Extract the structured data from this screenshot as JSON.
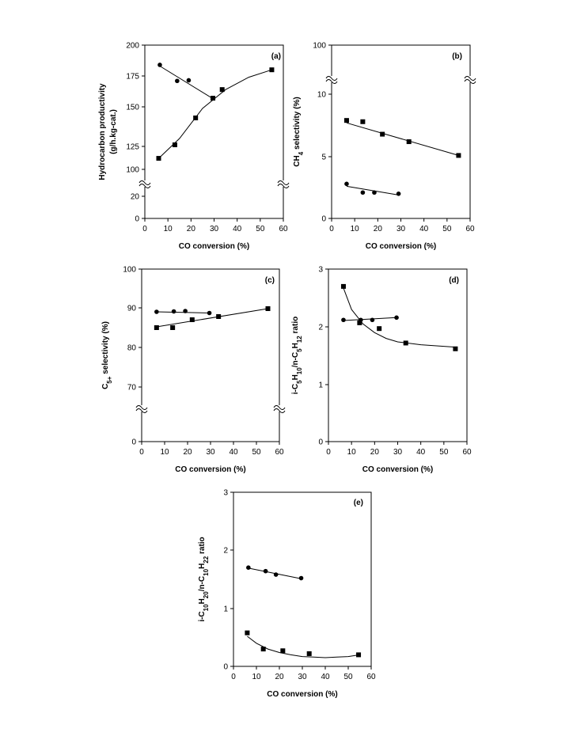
{
  "chart_data": [
    {
      "id": "a",
      "type": "scatter",
      "panel_label": "(a)",
      "xlabel": "CO conversion (%)",
      "ylabel_lines": [
        "Hydrocarbon productivity",
        "(g/h.kg-cat.)"
      ],
      "xlim": [
        0,
        60
      ],
      "x_ticks": [
        0,
        10,
        20,
        30,
        40,
        50,
        60
      ],
      "y_ticks": [
        0,
        20,
        100,
        125,
        150,
        175,
        200
      ],
      "axis_break": true,
      "series": [
        {
          "marker": "circle",
          "points": [
            [
              6.5,
              184
            ],
            [
              14,
              171
            ],
            [
              19,
              171.5
            ],
            [
              29.5,
              157
            ]
          ],
          "fit": [
            [
              6.5,
              183
            ],
            [
              30,
              156
            ]
          ]
        },
        {
          "marker": "square",
          "points": [
            [
              6,
              112
            ],
            [
              13,
              126
            ],
            [
              22,
              143
            ],
            [
              29.5,
              157
            ],
            [
              33.5,
              164
            ],
            [
              55,
              180
            ]
          ],
          "fit": [
            [
              6,
              112
            ],
            [
              15,
              130
            ],
            [
              25,
              149
            ],
            [
              35,
              164
            ],
            [
              45,
              174
            ],
            [
              55,
              180
            ]
          ]
        }
      ]
    },
    {
      "id": "b",
      "type": "scatter",
      "panel_label": "(b)",
      "xlabel": "CO conversion (%)",
      "ylabel_parts": [
        {
          "t": "CH"
        },
        {
          "t": "4",
          "sub": true
        },
        {
          "t": " selectivity (%)"
        }
      ],
      "xlim": [
        0,
        60
      ],
      "x_ticks": [
        0,
        10,
        20,
        30,
        40,
        50,
        60
      ],
      "y_ticks": [
        0,
        5,
        10,
        100
      ],
      "axis_break": true,
      "series": [
        {
          "marker": "square",
          "points": [
            [
              6.5,
              7.9
            ],
            [
              13.5,
              7.8
            ],
            [
              22,
              6.8
            ],
            [
              33.5,
              6.2
            ],
            [
              55,
              5.1
            ]
          ],
          "fit": [
            [
              6.5,
              7.7
            ],
            [
              55,
              5.1
            ]
          ]
        },
        {
          "marker": "circle",
          "points": [
            [
              6.5,
              2.8
            ],
            [
              13.5,
              2.1
            ],
            [
              18.5,
              2.1
            ],
            [
              29,
              2.0
            ]
          ],
          "fit": [
            [
              6.5,
              2.6
            ],
            [
              29,
              1.9
            ]
          ]
        }
      ]
    },
    {
      "id": "c",
      "type": "scatter",
      "panel_label": "(c)",
      "xlabel": "CO conversion (%)",
      "ylabel_parts": [
        {
          "t": "C"
        },
        {
          "t": "5+",
          "sub": true
        },
        {
          "t": " selectivity (%)"
        }
      ],
      "xlim": [
        0,
        60
      ],
      "x_ticks": [
        0,
        10,
        20,
        30,
        40,
        50,
        60
      ],
      "y_ticks": [
        0,
        70,
        80,
        90,
        100
      ],
      "axis_break": true,
      "series": [
        {
          "marker": "circle",
          "points": [
            [
              6.5,
              89
            ],
            [
              14,
              89.1
            ],
            [
              19,
              89.2
            ],
            [
              29.5,
              88.7
            ]
          ],
          "fit": [
            [
              6.5,
              89.0
            ],
            [
              29.5,
              88.7
            ]
          ]
        },
        {
          "marker": "square",
          "points": [
            [
              6.5,
              85
            ],
            [
              13.5,
              85
            ],
            [
              22,
              87
            ],
            [
              33.5,
              87.8
            ],
            [
              55,
              89.8
            ]
          ],
          "fit": [
            [
              6.5,
              85.2
            ],
            [
              55,
              89.8
            ]
          ]
        }
      ]
    },
    {
      "id": "d",
      "type": "scatter",
      "panel_label": "(d)",
      "xlabel": "CO conversion (%)",
      "ylabel_parts": [
        {
          "t": "i-C"
        },
        {
          "t": "5",
          "sub": true
        },
        {
          "t": "H"
        },
        {
          "t": "10",
          "sub": true
        },
        {
          "t": "/n-C"
        },
        {
          "t": "5",
          "sub": true
        },
        {
          "t": "H"
        },
        {
          "t": "12",
          "sub": true
        },
        {
          "t": " ratio"
        }
      ],
      "xlim": [
        0,
        60
      ],
      "x_ticks": [
        0,
        10,
        20,
        30,
        40,
        50,
        60
      ],
      "y_ticks": [
        0,
        1,
        2,
        3
      ],
      "axis_break": false,
      "series": [
        {
          "marker": "square",
          "points": [
            [
              6.5,
              2.7
            ],
            [
              13.5,
              2.07
            ],
            [
              22,
              1.97
            ],
            [
              33.5,
              1.72
            ],
            [
              55,
              1.62
            ]
          ],
          "fit": [
            [
              6.5,
              2.67
            ],
            [
              10,
              2.3
            ],
            [
              15,
              2.05
            ],
            [
              20,
              1.9
            ],
            [
              25,
              1.8
            ],
            [
              30,
              1.74
            ],
            [
              40,
              1.69
            ],
            [
              55,
              1.65
            ]
          ]
        },
        {
          "marker": "circle",
          "points": [
            [
              6.5,
              2.12
            ],
            [
              14,
              2.12
            ],
            [
              19,
              2.12
            ],
            [
              29.5,
              2.16
            ]
          ],
          "fit": [
            [
              6.5,
              2.11
            ],
            [
              29.5,
              2.16
            ]
          ]
        }
      ]
    },
    {
      "id": "e",
      "type": "scatter",
      "panel_label": "(e)",
      "xlabel": "CO conversion (%)",
      "ylabel_parts": [
        {
          "t": "i-C"
        },
        {
          "t": "10",
          "sub": true
        },
        {
          "t": "H"
        },
        {
          "t": "20",
          "sub": true
        },
        {
          "t": "/n-C"
        },
        {
          "t": "10",
          "sub": true
        },
        {
          "t": "H"
        },
        {
          "t": "22",
          "sub": true
        },
        {
          "t": " ratio"
        }
      ],
      "xlim": [
        0,
        60
      ],
      "x_ticks": [
        0,
        10,
        20,
        30,
        40,
        50,
        60
      ],
      "y_ticks": [
        0,
        1,
        2,
        3
      ],
      "axis_break": false,
      "series": [
        {
          "marker": "circle",
          "points": [
            [
              6.5,
              1.7
            ],
            [
              14,
              1.64
            ],
            [
              18.5,
              1.58
            ],
            [
              29.5,
              1.52
            ]
          ],
          "fit": [
            [
              6.5,
              1.69
            ],
            [
              29.5,
              1.51
            ]
          ]
        },
        {
          "marker": "square",
          "points": [
            [
              6,
              0.58
            ],
            [
              13,
              0.3
            ],
            [
              21.5,
              0.27
            ],
            [
              33,
              0.22
            ],
            [
              54.5,
              0.2
            ]
          ],
          "fit": [
            [
              6,
              0.52
            ],
            [
              10,
              0.4
            ],
            [
              15,
              0.3
            ],
            [
              20,
              0.24
            ],
            [
              25,
              0.2
            ],
            [
              30,
              0.17
            ],
            [
              35,
              0.16
            ],
            [
              40,
              0.15
            ],
            [
              45,
              0.16
            ],
            [
              50,
              0.17
            ],
            [
              55,
              0.2
            ]
          ]
        }
      ]
    }
  ]
}
